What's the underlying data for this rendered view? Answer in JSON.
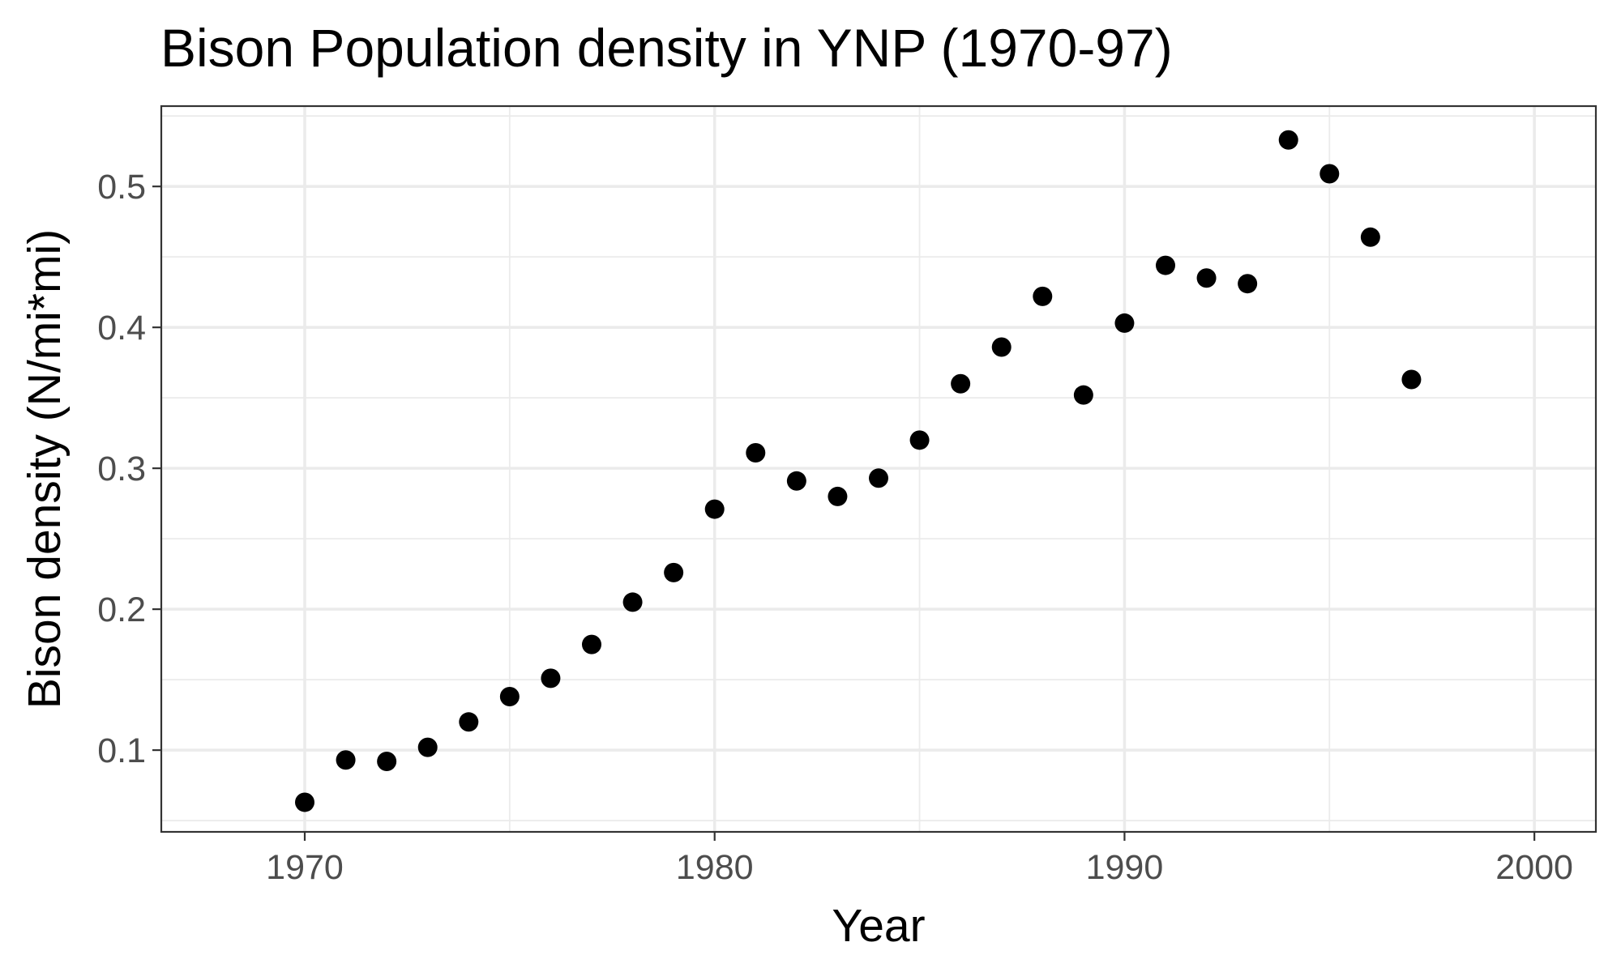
{
  "chart_data": {
    "type": "scatter",
    "title": "Bison Population density in YNP (1970-97)",
    "xlabel": "Year",
    "ylabel": "Bison density (N/mi*mi)",
    "xlim": [
      1966.5,
      2001.5
    ],
    "ylim": [
      0.042,
      0.557
    ],
    "x_ticks": [
      1970,
      1980,
      1990,
      2000
    ],
    "x_tick_labels": [
      "1970",
      "1980",
      "1990",
      "2000"
    ],
    "x_minor_ticks": [
      1975,
      1985,
      1995
    ],
    "y_ticks": [
      0.1,
      0.2,
      0.3,
      0.4,
      0.5
    ],
    "y_tick_labels": [
      "0.1",
      "0.2",
      "0.3",
      "0.4",
      "0.5"
    ],
    "y_minor_ticks": [
      0.05,
      0.15,
      0.25,
      0.35,
      0.45,
      0.55
    ],
    "grid": true,
    "point_color": "#000000",
    "series": [
      {
        "x": [
          1970,
          1971,
          1972,
          1973,
          1974,
          1975,
          1976,
          1977,
          1978,
          1979,
          1980,
          1981,
          1982,
          1983,
          1984,
          1985,
          1986,
          1987,
          1988,
          1989,
          1990,
          1991,
          1992,
          1993,
          1994,
          1995,
          1996,
          1997
        ],
        "y": [
          0.063,
          0.093,
          0.092,
          0.102,
          0.12,
          0.138,
          0.151,
          0.175,
          0.205,
          0.226,
          0.271,
          0.311,
          0.291,
          0.28,
          0.293,
          0.32,
          0.36,
          0.386,
          0.422,
          0.352,
          0.403,
          0.444,
          0.435,
          0.431,
          0.533,
          0.509,
          0.464,
          0.363
        ]
      }
    ]
  }
}
